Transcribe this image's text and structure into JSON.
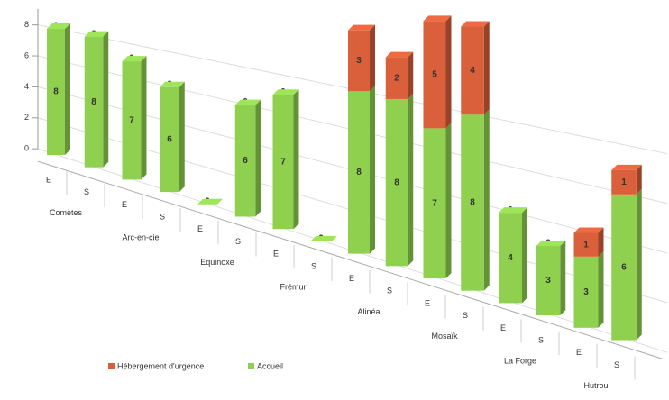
{
  "chart_data": {
    "type": "bar3d-stacked",
    "categories": [
      "E",
      "S",
      "E",
      "S",
      "E",
      "S",
      "E",
      "S",
      "E",
      "S",
      "E",
      "S",
      "E",
      "S",
      "E",
      "S"
    ],
    "groups": [
      "Comètes",
      "Arc-en-ciel",
      "Equinoxe",
      "Frémur",
      "Alinéa",
      "Mosaïk",
      "La Forge",
      "Hutrou"
    ],
    "series": [
      {
        "name": "Accueil",
        "color": "#8fd14f",
        "values": [
          8,
          8,
          7,
          6,
          0,
          6,
          7,
          0,
          8,
          8,
          7,
          8,
          4,
          3,
          3,
          6
        ]
      },
      {
        "name": "Hébergement d'urgence",
        "color": "#d9603b",
        "values": [
          0,
          0,
          0,
          0,
          0,
          0,
          0,
          0,
          3,
          2,
          5,
          4,
          0,
          0,
          1,
          1
        ]
      }
    ],
    "ylim": [
      0,
      12
    ],
    "yticks": [
      0,
      2,
      4,
      6,
      8
    ],
    "grid": true,
    "legend": "bottom"
  }
}
